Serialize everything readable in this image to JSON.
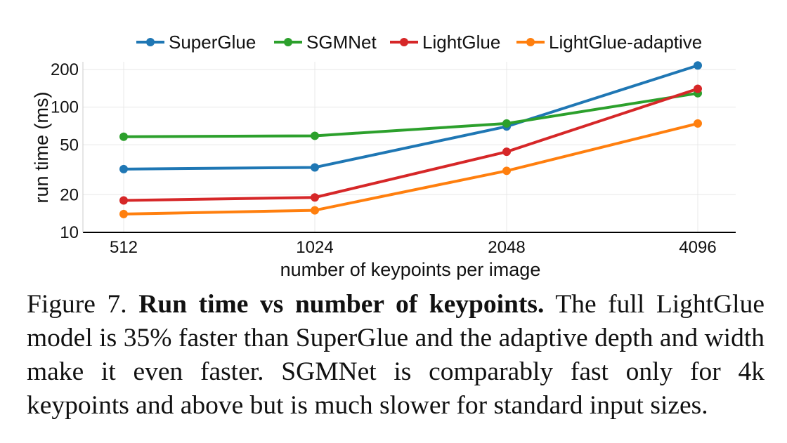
{
  "chart_data": {
    "type": "line",
    "x": [
      512,
      1024,
      2048,
      4096
    ],
    "x_tick_labels": [
      "512",
      "1024",
      "2048",
      "4096"
    ],
    "y_scale": "log",
    "ylim": [
      10,
      230
    ],
    "y_ticks": [
      10,
      20,
      50,
      100,
      200
    ],
    "y_tick_labels": [
      "10",
      "20",
      "50",
      "100",
      "200"
    ],
    "xlabel": "number of keypoints per image",
    "ylabel": "run time (ms)",
    "grid": true,
    "legend_position": "top",
    "series": [
      {
        "name": "SuperGlue",
        "color": "#1f77b4",
        "values": [
          32,
          33,
          70,
          215
        ]
      },
      {
        "name": "SGMNet",
        "color": "#2ca02c",
        "values": [
          58,
          59,
          74,
          129
        ]
      },
      {
        "name": "LightGlue",
        "color": "#d62728",
        "values": [
          18,
          19,
          44,
          140
        ]
      },
      {
        "name": "LightGlue-adaptive",
        "color": "#ff7f0e",
        "values": [
          14,
          15,
          31,
          74
        ]
      }
    ]
  },
  "caption": {
    "figure_label": "Figure 7.",
    "bold_title": "Run time vs number of keypoints.",
    "body": "The full LightGlue model is 35% faster than SuperGlue and the adaptive depth and width make it even faster. SGMNet is comparably fast only for 4k keypoints and above but is much slower for standard input sizes."
  }
}
